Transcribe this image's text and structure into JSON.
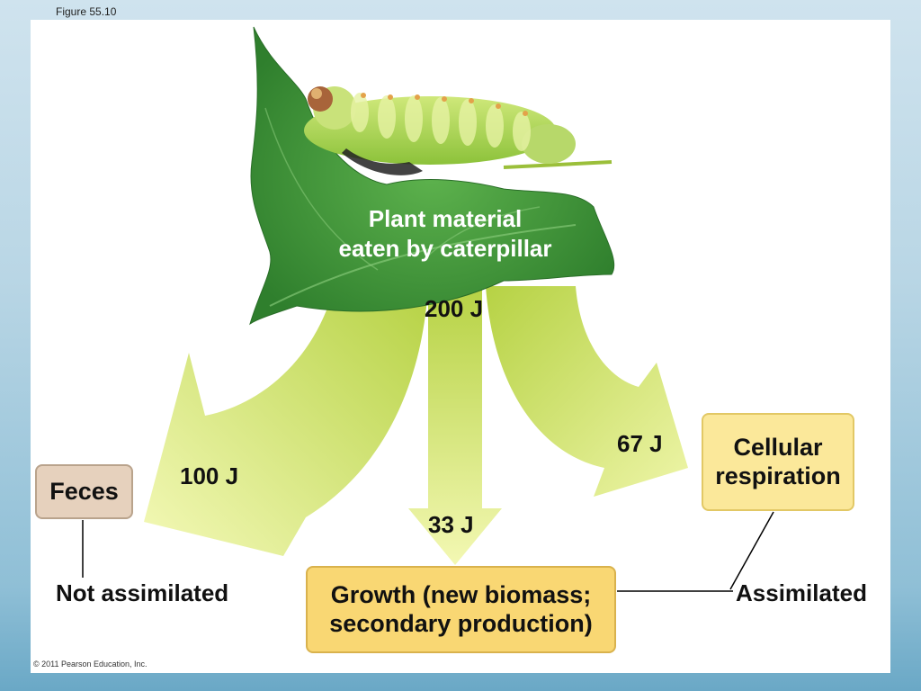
{
  "figure_label": "Figure 55.10",
  "plant_label_line1": "Plant material",
  "plant_label_line2": "eaten by caterpillar",
  "energy": {
    "total": "200 J",
    "feces": "100 J",
    "respiration": "67 J",
    "growth": "33 J"
  },
  "boxes": {
    "feces": "Feces",
    "respiration_line1": "Cellular",
    "respiration_line2": "respiration",
    "growth_line1": "Growth (new biomass;",
    "growth_line2": "secondary production)"
  },
  "labels": {
    "not_assimilated": "Not assimilated",
    "assimilated": "Assimilated"
  },
  "copyright": "© 2011 Pearson Education, Inc.",
  "colors": {
    "arrow_light": "#eef5a8",
    "arrow_dark": "#b8d448",
    "leaf": "#3f9a3a",
    "feces_box": "#e6d1bd",
    "respiration_box": "#fbe89a",
    "growth_box": "#f9d773"
  }
}
